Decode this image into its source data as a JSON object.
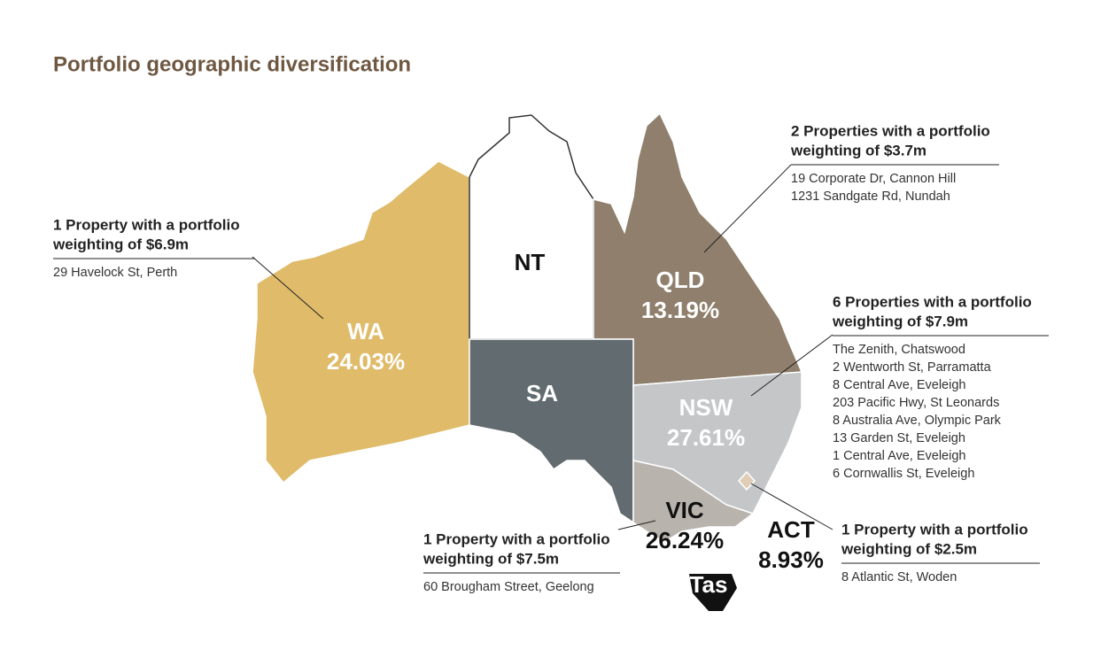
{
  "title": "Portfolio geographic diversification",
  "regions": [
    {
      "code": "WA",
      "share": "24.03%"
    },
    {
      "code": "NT"
    },
    {
      "code": "QLD",
      "share": "13.19%"
    },
    {
      "code": "SA"
    },
    {
      "code": "NSW",
      "share": "27.61%"
    },
    {
      "code": "VIC",
      "share": "26.24%"
    },
    {
      "code": "ACT",
      "share": "8.93%"
    },
    {
      "code": "Tas"
    }
  ],
  "callouts": [
    {
      "heading": [
        "1 Property with a portfolio",
        "weighting of $6.9m"
      ],
      "addresses": [
        "29 Havelock St, Perth"
      ]
    },
    {
      "heading": [
        "2 Properties with a portfolio",
        "weighting of $3.7m"
      ],
      "addresses": [
        "19 Corporate Dr, Cannon Hill",
        "1231 Sandgate Rd, Nundah"
      ]
    },
    {
      "heading": [
        "6 Properties with a portfolio",
        "weighting of $7.9m"
      ],
      "addresses": [
        "The Zenith, Chatswood",
        "2 Wentworth St, Parramatta",
        "8 Central Ave, Eveleigh",
        "203 Pacific Hwy, St Leonards",
        "8 Australia Ave, Olympic Park",
        "13 Garden St, Eveleigh",
        "1 Central Ave, Eveleigh",
        "6 Cornwallis St, Eveleigh"
      ]
    },
    {
      "heading": [
        "1 Property with a portfolio",
        "weighting of $7.5m"
      ],
      "addresses": [
        "60 Brougham Street, Geelong"
      ]
    },
    {
      "heading": [
        "1 Property with a portfolio",
        "weighting of $2.5m"
      ],
      "addresses": [
        "8 Atlantic St, Woden"
      ]
    }
  ]
}
